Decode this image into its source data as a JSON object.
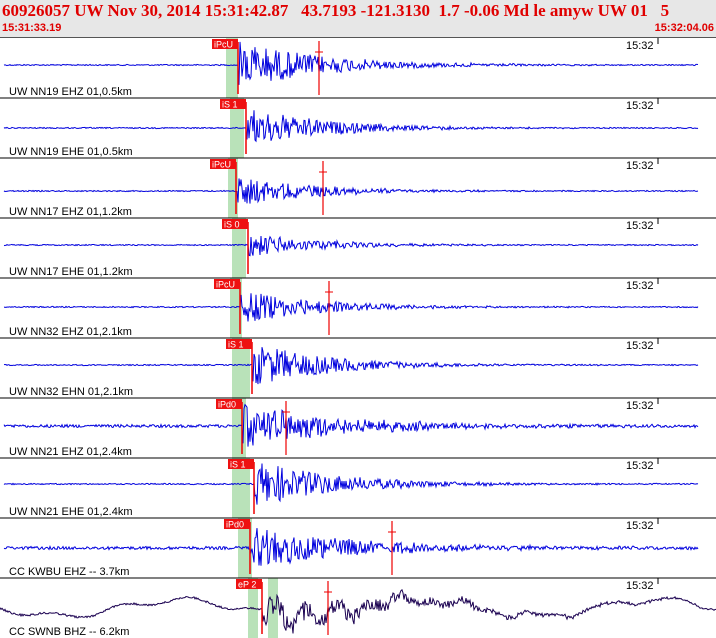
{
  "header": {
    "title": "60926057 UW Nov 30, 2014 15:31:42.87   43.7193 -121.3130  1.7 -0.06 Md le amyw UW 01   5",
    "start_time": "15:31:33.19",
    "end_time": "15:32:04.06"
  },
  "colors": {
    "trace": "#0000dd",
    "trace_dark": "#1a0050",
    "pick": "#ee0000",
    "pick_label_bg": "#ee1111",
    "window": "#b9e2b9",
    "header_bg": "#e7e7e7"
  },
  "chart_data": {
    "type": "seismogram",
    "time_range": [
      "15:31:33.19",
      "15:32:04.06"
    ],
    "time_tick_label": "15:32",
    "channels": [
      {
        "label": "UW NN19 EHZ 01,0.5km",
        "pick": "iPcU",
        "amplitude": 0.9,
        "coda": 0.35
      },
      {
        "label": "UW NN19 EHE 01,0.5km",
        "pick": "iS 1",
        "amplitude": 0.75,
        "coda": 0.3
      },
      {
        "label": "UW NN17 EHZ 01,1.2km",
        "pick": "iPcU",
        "amplitude": 0.55,
        "coda": 0.3
      },
      {
        "label": "UW NN17 EHE 01,1.2km",
        "pick": "iS 0",
        "amplitude": 0.45,
        "coda": 0.25
      },
      {
        "label": "UW NN32 EHZ 01,2.1km",
        "pick": "iPcU",
        "amplitude": 0.65,
        "coda": 0.3
      },
      {
        "label": "UW NN32 EHN 01,2.1km",
        "pick": "iS 1",
        "amplitude": 0.8,
        "coda": 0.3
      },
      {
        "label": "UW NN21 EHZ 01,2.4km",
        "pick": "iPd0",
        "amplitude": 0.8,
        "coda": 0.5
      },
      {
        "label": "UW NN21 EHE 01,2.4km",
        "pick": "iS 1",
        "amplitude": 0.85,
        "coda": 0.35
      },
      {
        "label": "CC KWBU EHZ -- 3.7km",
        "pick": "iPd0",
        "amplitude": 0.75,
        "coda": 0.55
      },
      {
        "label": "CC SWNB BHZ -- 6.2km",
        "pick": "eP 2",
        "amplitude": 0.9,
        "coda": 0.6
      }
    ]
  }
}
